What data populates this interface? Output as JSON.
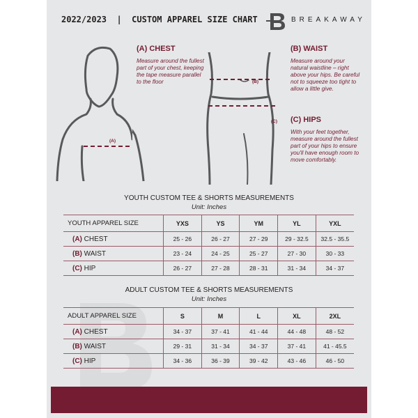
{
  "header": {
    "title": "2022/2023  |  CUSTOM APPAREL SIZE CHART",
    "brand": "BREAKAWAY",
    "logo_letter": "B"
  },
  "measures": {
    "chest": {
      "label": "(A) CHEST",
      "marker": "(A)",
      "description": "Measure around the fullest part of your chest, keeping the tape measure parallel to the floor"
    },
    "waist": {
      "label": "(B) WAIST",
      "marker": "(B)",
      "description": "Measure around your natural waistline – right above your hips. Be careful not to squeeze too tight to allow a little give."
    },
    "hips": {
      "label": "(C) HIPS",
      "marker": "(C)",
      "description": "With your feet together, measure around the fullest part of your hips to ensure you'll have enough room to move comfortably."
    }
  },
  "youth": {
    "title": "YOUTH CUSTOM TEE & SHORTS MEASUREMENTS",
    "unit": "Unit: Inches",
    "header_label": "YOUTH APPAREL SIZE",
    "sizes": [
      "YXS",
      "YS",
      "YM",
      "YL",
      "YXL"
    ],
    "rows": [
      {
        "code": "(A)",
        "name": "CHEST",
        "values": [
          "25 - 26",
          "26 - 27",
          "27 - 29",
          "29 - 32.5",
          "32.5 - 35.5"
        ]
      },
      {
        "code": "(B)",
        "name": "WAIST",
        "values": [
          "23 - 24",
          "24 - 25",
          "25 - 27",
          "27 - 30",
          "30 - 33"
        ]
      },
      {
        "code": "(C)",
        "name": "HIP",
        "values": [
          "26 - 27",
          "27 - 28",
          "28 - 31",
          "31 - 34",
          "34 - 37"
        ]
      }
    ]
  },
  "adult": {
    "title": "ADULT CUSTOM TEE & SHORTS MEASUREMENTS",
    "unit": "Unit: Inches",
    "header_label": "ADULT APPAREL SIZE",
    "sizes": [
      "S",
      "M",
      "L",
      "XL",
      "2XL"
    ],
    "rows": [
      {
        "code": "(A)",
        "name": "CHEST",
        "values": [
          "34 - 37",
          "37 - 41",
          "41 - 44",
          "44 - 48",
          "48 - 52"
        ]
      },
      {
        "code": "(B)",
        "name": "WAIST",
        "values": [
          "29 - 31",
          "31 - 34",
          "34 - 37",
          "37 - 41",
          "41 - 45.5"
        ]
      },
      {
        "code": "(C)",
        "name": "HIP",
        "values": [
          "34 - 36",
          "36 - 39",
          "39 - 42",
          "43 - 46",
          "46 - 50"
        ]
      }
    ]
  },
  "colors": {
    "accent": "#741c32",
    "page": "#e6e7e8",
    "text": "#231f20"
  }
}
